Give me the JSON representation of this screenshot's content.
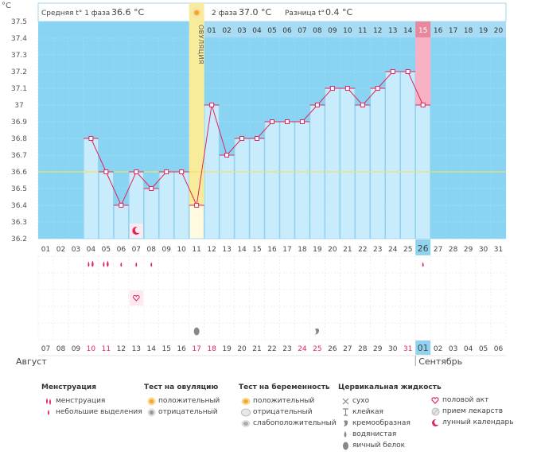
{
  "header": {
    "axis_unit": "°C",
    "phase1_label": "Средняя t° 1 фаза",
    "phase1_value": "36.6 °C",
    "phase2_label": "2 фаза",
    "phase2_value": "37.0 °C",
    "diff_label": "Разница t°",
    "diff_value": "0.4 °C"
  },
  "ovulation_label": "ОВУЛЯЦИЯ",
  "months": {
    "first": "Август",
    "second": "Сентябрь"
  },
  "chart_data": {
    "type": "line",
    "ylim": [
      36.2,
      37.5
    ],
    "y_ticks": [
      "37.5",
      "37.4",
      "37.3",
      "37.2",
      "37.1",
      "37",
      "36.9",
      "36.8",
      "36.7",
      "36.6",
      "36.5",
      "36.4",
      "36.3",
      "36.2"
    ],
    "cycle_days": [
      "01",
      "02",
      "03",
      "04",
      "05",
      "06",
      "07",
      "08",
      "09",
      "10",
      "11",
      "12",
      "13",
      "14",
      "15",
      "16",
      "17",
      "18",
      "19",
      "20",
      "21",
      "22",
      "23",
      "24",
      "25",
      "26",
      "27",
      "28",
      "29",
      "30",
      "31"
    ],
    "temperatures": [
      null,
      null,
      null,
      36.8,
      36.6,
      36.4,
      36.6,
      36.5,
      36.6,
      36.6,
      36.4,
      37.0,
      36.7,
      36.8,
      36.8,
      36.9,
      36.9,
      36.9,
      37.0,
      37.1,
      37.1,
      37.0,
      37.1,
      37.2,
      37.2,
      37.0,
      null,
      null,
      null,
      null,
      null
    ],
    "phase2_days": [
      "01",
      "02",
      "03",
      "04",
      "05",
      "06",
      "07",
      "08",
      "09",
      "10",
      "11",
      "12",
      "13",
      "14",
      "15",
      "16",
      "17",
      "18",
      "19",
      "20"
    ],
    "dates": [
      "07",
      "08",
      "09",
      "10",
      "11",
      "12",
      "13",
      "14",
      "15",
      "16",
      "17",
      "18",
      "19",
      "20",
      "21",
      "22",
      "23",
      "24",
      "25",
      "26",
      "27",
      "28",
      "29",
      "30",
      "31",
      "01",
      "02",
      "03",
      "04",
      "05",
      "06"
    ],
    "red_date_indices": [
      3,
      4,
      10,
      11,
      17,
      18,
      24
    ],
    "coverline": 36.6,
    "ovulation_index": 10,
    "today_index": 25,
    "highlight_phase2_index": 14,
    "markers": {
      "moon_index": 6,
      "menstruation_heavy": [
        3,
        4
      ],
      "menstruation_light": [
        5,
        6,
        7,
        25
      ],
      "intercourse": [
        6
      ],
      "egg_white": [
        10
      ],
      "creamy": [
        18
      ]
    }
  },
  "legend": {
    "menstruation": {
      "title": "Менструация",
      "items": [
        "менструация",
        "небольшие выделения"
      ]
    },
    "ovulation_test": {
      "title": "Тест на овуляцию",
      "items": [
        "положительный",
        "отрицательный"
      ]
    },
    "pregnancy_test": {
      "title": "Тест на беременность",
      "items": [
        "положительный",
        "отрицательный",
        "слабоположительный"
      ]
    },
    "cervical": {
      "title": "Цервикальная жидкость",
      "items": [
        "сухо",
        "клейкая",
        "кремообразная",
        "водянистая",
        "яичный белок"
      ]
    },
    "other": {
      "items": [
        "половой акт",
        "прием лекарств",
        "лунный календарь"
      ]
    },
    "colors": {
      "sky": "#88d4f2",
      "bars": "#c9ecfc",
      "line": "#e0245e",
      "ovulation": "#f8ec9c",
      "today": "#f8b0c4"
    }
  }
}
